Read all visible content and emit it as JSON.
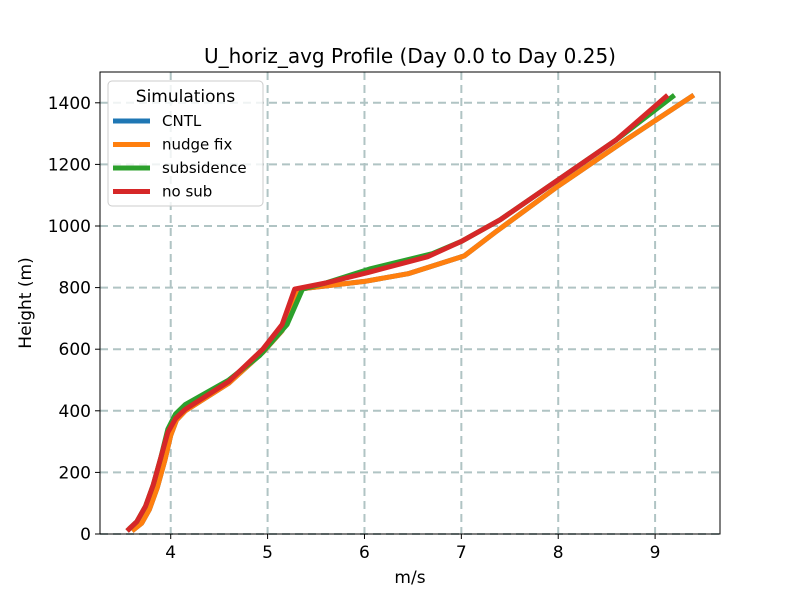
{
  "chart_data": {
    "type": "line",
    "title": "U_horiz_avg Profile (Day 0.0 to Day 0.25)",
    "xlabel": "m/s",
    "ylabel": "Height (m)",
    "xlim": [
      3.27,
      9.67
    ],
    "ylim": [
      0,
      1500
    ],
    "xticks": [
      4,
      5,
      6,
      7,
      8,
      9
    ],
    "yticks": [
      0,
      200,
      400,
      600,
      800,
      1000,
      1200,
      1400
    ],
    "grid": true,
    "legend": {
      "title": "Simulations",
      "position": "top-left"
    },
    "series": [
      {
        "name": "CNTL",
        "color": "#1f77b4",
        "points": [
          [
            3.6,
            10
          ],
          [
            3.7,
            35
          ],
          [
            3.78,
            80
          ],
          [
            3.86,
            150
          ],
          [
            3.94,
            240
          ],
          [
            4.0,
            320
          ],
          [
            4.06,
            370
          ],
          [
            4.15,
            400
          ],
          [
            4.6,
            490
          ],
          [
            4.95,
            590
          ],
          [
            5.15,
            660
          ],
          [
            5.32,
            795
          ],
          [
            5.45,
            800
          ],
          [
            6.0,
            820
          ],
          [
            6.45,
            845
          ],
          [
            7.03,
            903
          ],
          [
            7.35,
            980
          ],
          [
            8.0,
            1130
          ],
          [
            8.7,
            1280
          ],
          [
            9.4,
            1425
          ]
        ]
      },
      {
        "name": "nudge fix",
        "color": "#ff7f0e",
        "points": [
          [
            3.6,
            10
          ],
          [
            3.7,
            35
          ],
          [
            3.78,
            80
          ],
          [
            3.86,
            150
          ],
          [
            3.94,
            240
          ],
          [
            4.0,
            320
          ],
          [
            4.06,
            370
          ],
          [
            4.15,
            400
          ],
          [
            4.6,
            490
          ],
          [
            4.95,
            590
          ],
          [
            5.15,
            660
          ],
          [
            5.32,
            795
          ],
          [
            5.45,
            800
          ],
          [
            6.0,
            820
          ],
          [
            6.45,
            845
          ],
          [
            7.03,
            903
          ],
          [
            7.35,
            980
          ],
          [
            8.0,
            1130
          ],
          [
            8.7,
            1280
          ],
          [
            9.4,
            1425
          ]
        ]
      },
      {
        "name": "subsidence",
        "color": "#2ca02c",
        "points": [
          [
            3.55,
            10
          ],
          [
            3.65,
            40
          ],
          [
            3.74,
            90
          ],
          [
            3.82,
            160
          ],
          [
            3.9,
            250
          ],
          [
            3.97,
            340
          ],
          [
            4.05,
            390
          ],
          [
            4.15,
            420
          ],
          [
            4.6,
            500
          ],
          [
            4.92,
            580
          ],
          [
            5.2,
            680
          ],
          [
            5.36,
            795
          ],
          [
            5.6,
            815
          ],
          [
            6.05,
            860
          ],
          [
            6.7,
            910
          ],
          [
            7.0,
            950
          ],
          [
            7.4,
            1020
          ],
          [
            8.0,
            1150
          ],
          [
            8.6,
            1280
          ],
          [
            9.2,
            1425
          ]
        ]
      },
      {
        "name": "no sub",
        "color": "#d62728",
        "points": [
          [
            3.55,
            10
          ],
          [
            3.65,
            40
          ],
          [
            3.74,
            90
          ],
          [
            3.82,
            160
          ],
          [
            3.9,
            250
          ],
          [
            3.97,
            330
          ],
          [
            4.05,
            375
          ],
          [
            4.15,
            405
          ],
          [
            4.6,
            495
          ],
          [
            4.95,
            600
          ],
          [
            5.15,
            680
          ],
          [
            5.28,
            795
          ],
          [
            5.6,
            815
          ],
          [
            6.05,
            850
          ],
          [
            6.65,
            900
          ],
          [
            7.0,
            950
          ],
          [
            7.4,
            1020
          ],
          [
            8.0,
            1150
          ],
          [
            8.6,
            1280
          ],
          [
            9.13,
            1425
          ]
        ]
      }
    ]
  }
}
